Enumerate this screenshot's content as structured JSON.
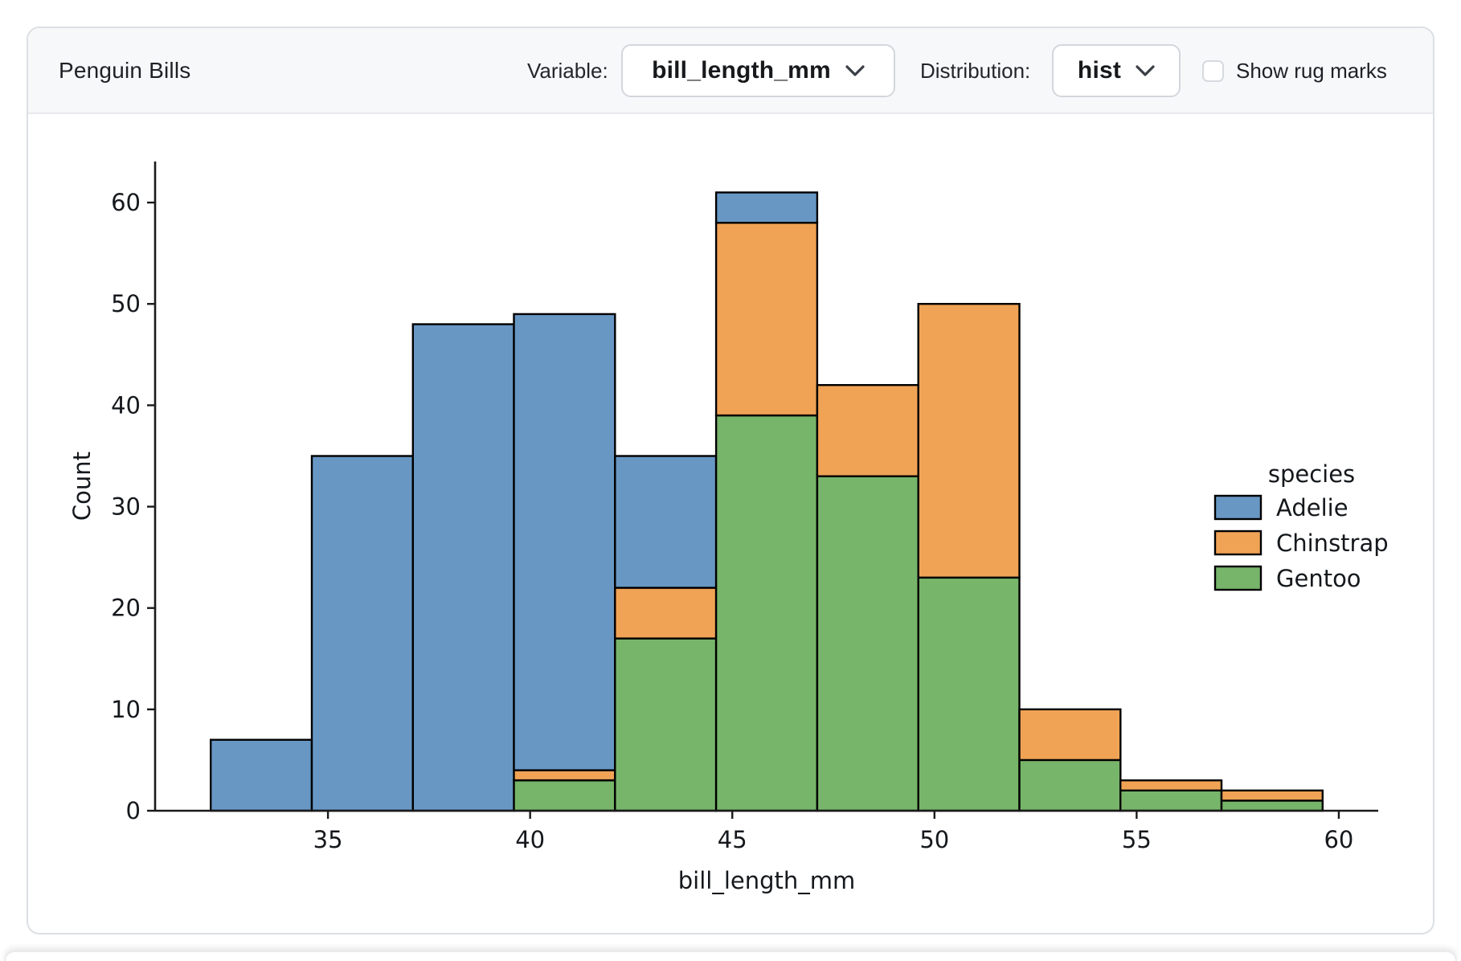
{
  "header": {
    "title": "Penguin Bills",
    "variable_label": "Variable:",
    "variable_value": "bill_length_mm",
    "distribution_label": "Distribution:",
    "distribution_value": "hist",
    "rug_label": "Show rug marks",
    "rug_checked": false
  },
  "chart_data": {
    "type": "bar",
    "subtype": "stacked-histogram",
    "title": "",
    "xlabel": "bill_length_mm",
    "ylabel": "Count",
    "legend_title": "species",
    "legend_position": "right",
    "bin_edges": [
      32.1,
      34.6,
      37.1,
      39.6,
      42.1,
      44.6,
      47.1,
      49.6,
      52.1,
      54.6,
      57.1,
      59.6
    ],
    "series": [
      {
        "name": "Adelie",
        "color": "#6897C4",
        "values": [
          7,
          35,
          48,
          45,
          13,
          3,
          0,
          0,
          0,
          0,
          0
        ]
      },
      {
        "name": "Chinstrap",
        "color": "#F0A355",
        "values": [
          0,
          0,
          0,
          1,
          5,
          19,
          9,
          27,
          5,
          1,
          1
        ]
      },
      {
        "name": "Gentoo",
        "color": "#77B56A",
        "values": [
          0,
          0,
          0,
          3,
          17,
          39,
          33,
          23,
          5,
          2,
          1
        ]
      }
    ],
    "bin_totals": [
      7,
      35,
      48,
      49,
      35,
      61,
      42,
      50,
      10,
      3,
      2
    ],
    "stack_order_bottom_to_top": [
      "Gentoo",
      "Chinstrap",
      "Adelie"
    ],
    "xticks": [
      35,
      40,
      45,
      50,
      55,
      60
    ],
    "yticks": [
      0,
      10,
      20,
      30,
      40,
      50,
      60
    ],
    "xlim": [
      30.725,
      60.975
    ],
    "ylim": [
      0,
      64.05
    ],
    "edge_color": "#000000",
    "axis_color": "#1a1a1a",
    "text_color": "#15181c"
  }
}
